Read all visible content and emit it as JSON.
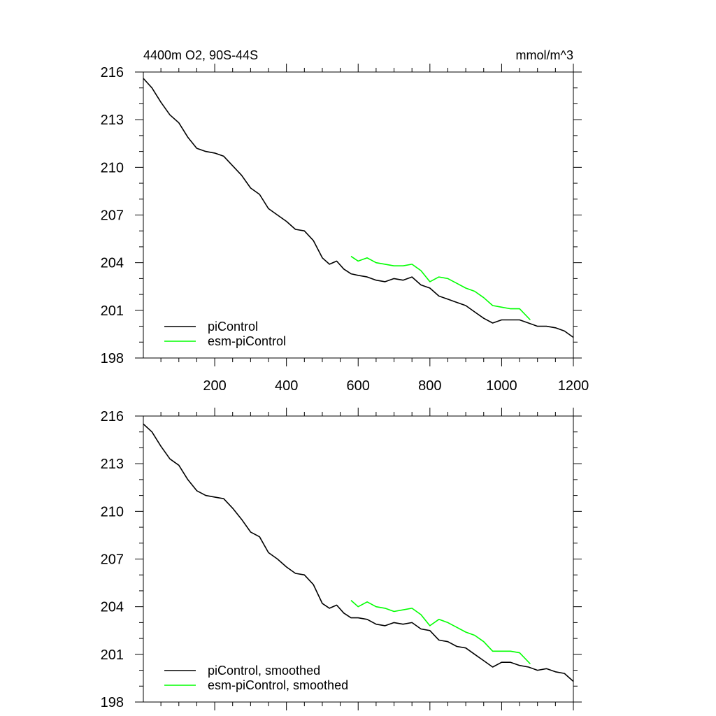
{
  "chart_data": [
    {
      "type": "line",
      "title_left": "4400m O2, 90S-44S",
      "title_right": "mmol/m^3",
      "xlim": [
        1,
        1200
      ],
      "ylim": [
        198,
        216
      ],
      "y_ticks": [
        198,
        201,
        204,
        207,
        210,
        213,
        216
      ],
      "x_ticks": [
        200,
        400,
        600,
        800,
        1000,
        1200
      ],
      "x_tick_labels_shown": true,
      "legend_position": "bottom-left",
      "series": [
        {
          "name": "piControl",
          "color": "#000000",
          "x": [
            1,
            25,
            50,
            75,
            100,
            125,
            150,
            175,
            200,
            225,
            250,
            275,
            300,
            325,
            350,
            375,
            400,
            425,
            450,
            475,
            500,
            520,
            540,
            560,
            580,
            600,
            625,
            650,
            675,
            700,
            725,
            750,
            775,
            800,
            825,
            850,
            875,
            900,
            925,
            950,
            975,
            1000,
            1025,
            1050,
            1075,
            1100,
            1125,
            1150,
            1175,
            1200
          ],
          "y": [
            215.6,
            215.0,
            214.1,
            213.3,
            212.8,
            211.9,
            211.2,
            211.0,
            210.9,
            210.7,
            210.1,
            209.5,
            208.7,
            208.3,
            207.4,
            207.0,
            206.6,
            206.1,
            206.0,
            205.4,
            204.3,
            203.9,
            204.1,
            203.6,
            203.3,
            203.2,
            203.1,
            202.9,
            202.8,
            203.0,
            202.9,
            203.1,
            202.6,
            202.4,
            201.9,
            201.7,
            201.5,
            201.3,
            200.9,
            200.5,
            200.2,
            200.4,
            200.4,
            200.4,
            200.2,
            200.0,
            200.0,
            199.9,
            199.7,
            199.3
          ]
        },
        {
          "name": "esm-piControl",
          "color": "#00ff00",
          "x": [
            580,
            600,
            625,
            650,
            675,
            700,
            725,
            750,
            775,
            800,
            825,
            850,
            875,
            900,
            925,
            950,
            975,
            1000,
            1025,
            1050,
            1080
          ],
          "y": [
            204.4,
            204.1,
            204.3,
            204.0,
            203.9,
            203.8,
            203.8,
            203.9,
            203.5,
            202.8,
            203.1,
            203.0,
            202.7,
            202.4,
            202.2,
            201.8,
            201.3,
            201.2,
            201.1,
            201.1,
            200.4
          ]
        }
      ]
    },
    {
      "type": "line",
      "xlim": [
        1,
        1200
      ],
      "ylim": [
        198,
        216
      ],
      "y_ticks": [
        198,
        201,
        204,
        207,
        210,
        213,
        216
      ],
      "x_ticks": [
        200,
        400,
        600,
        800,
        1000,
        1200
      ],
      "x_tick_labels_shown": false,
      "legend_position": "bottom-left",
      "series": [
        {
          "name": "piControl, smoothed",
          "color": "#000000",
          "x": [
            1,
            25,
            50,
            75,
            100,
            125,
            150,
            175,
            200,
            225,
            250,
            275,
            300,
            325,
            350,
            375,
            400,
            425,
            450,
            475,
            500,
            520,
            540,
            560,
            580,
            600,
            625,
            650,
            675,
            700,
            725,
            750,
            775,
            800,
            825,
            850,
            875,
            900,
            925,
            950,
            975,
            1000,
            1025,
            1050,
            1075,
            1100,
            1125,
            1150,
            1175,
            1200
          ],
          "y": [
            215.5,
            215.0,
            214.1,
            213.3,
            212.9,
            212.0,
            211.3,
            211.0,
            210.9,
            210.8,
            210.2,
            209.5,
            208.7,
            208.4,
            207.4,
            207.0,
            206.5,
            206.1,
            206.0,
            205.4,
            204.2,
            203.9,
            204.1,
            203.6,
            203.3,
            203.3,
            203.2,
            202.9,
            202.8,
            203.0,
            202.9,
            203.0,
            202.6,
            202.5,
            201.9,
            201.8,
            201.5,
            201.4,
            201.0,
            200.6,
            200.2,
            200.5,
            200.5,
            200.3,
            200.2,
            200.0,
            200.1,
            199.9,
            199.8,
            199.3
          ]
        },
        {
          "name": "esm-piControl, smoothed",
          "color": "#00ff00",
          "x": [
            580,
            600,
            625,
            650,
            675,
            700,
            725,
            750,
            775,
            800,
            825,
            850,
            875,
            900,
            925,
            950,
            975,
            1000,
            1025,
            1050,
            1080
          ],
          "y": [
            204.4,
            204.0,
            204.3,
            204.0,
            203.9,
            203.7,
            203.8,
            203.9,
            203.5,
            202.8,
            203.2,
            203.0,
            202.7,
            202.4,
            202.2,
            201.8,
            201.2,
            201.2,
            201.2,
            201.1,
            200.4
          ]
        }
      ]
    }
  ]
}
